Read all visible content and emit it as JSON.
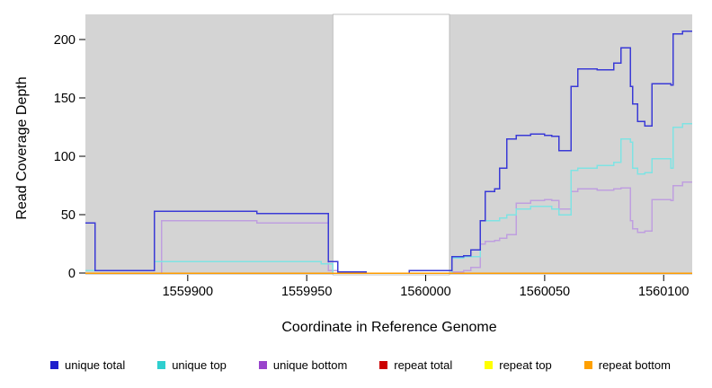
{
  "axes": {
    "x": {
      "label": "Coordinate in Reference Genome",
      "ticks": [
        1559900,
        1559950,
        1560000,
        1560050,
        1560100
      ]
    },
    "y": {
      "label": "Read Coverage Depth",
      "ticks": [
        0,
        50,
        100,
        150,
        200
      ]
    }
  },
  "chart_data": {
    "type": "line",
    "step": true,
    "title": "",
    "xlabel": "Coordinate in Reference Genome",
    "ylabel": "Read Coverage Depth",
    "xlim": [
      1559857,
      1560112
    ],
    "ylim": [
      0,
      221
    ],
    "x_ticks": [
      1559900,
      1559950,
      1560000,
      1560050,
      1560100
    ],
    "y_ticks": [
      0,
      50,
      100,
      150,
      200
    ],
    "grid": false,
    "panel_background": "#d4d4d4",
    "uncovered_region": {
      "x0": 1559961,
      "x1": 1560010,
      "color": "#ffffff"
    },
    "series": [
      {
        "name": "unique total",
        "legend_color": "#1f1fcc",
        "line_color": "#3a3ad6",
        "points": [
          [
            1559857,
            43
          ],
          [
            1559861,
            2
          ],
          [
            1559886,
            53
          ],
          [
            1559929,
            51
          ],
          [
            1559959,
            10
          ],
          [
            1559963,
            1
          ],
          [
            1559975,
            0
          ],
          [
            1559993,
            2
          ],
          [
            1560011,
            14
          ],
          [
            1560016,
            15
          ],
          [
            1560019,
            20
          ],
          [
            1560023,
            45
          ],
          [
            1560025,
            70
          ],
          [
            1560029,
            72
          ],
          [
            1560031,
            90
          ],
          [
            1560034,
            115
          ],
          [
            1560038,
            118
          ],
          [
            1560044,
            119
          ],
          [
            1560050,
            118
          ],
          [
            1560053,
            117
          ],
          [
            1560056,
            105
          ],
          [
            1560061,
            160
          ],
          [
            1560064,
            175
          ],
          [
            1560072,
            174
          ],
          [
            1560079,
            180
          ],
          [
            1560082,
            193
          ],
          [
            1560086,
            160
          ],
          [
            1560087,
            145
          ],
          [
            1560089,
            130
          ],
          [
            1560092,
            126
          ],
          [
            1560095,
            162
          ],
          [
            1560103,
            161
          ],
          [
            1560104,
            205
          ],
          [
            1560108,
            207
          ]
        ]
      },
      {
        "name": "unique top",
        "legend_color": "#2fcfcf",
        "line_color": "#7fe3e3",
        "points": [
          [
            1559857,
            2
          ],
          [
            1559886,
            10
          ],
          [
            1559956,
            8
          ],
          [
            1559961,
            0
          ],
          [
            1560011,
            13
          ],
          [
            1560016,
            14
          ],
          [
            1560023,
            45
          ],
          [
            1560031,
            47
          ],
          [
            1560034,
            50
          ],
          [
            1560038,
            55
          ],
          [
            1560044,
            57
          ],
          [
            1560053,
            55
          ],
          [
            1560056,
            50
          ],
          [
            1560061,
            88
          ],
          [
            1560064,
            90
          ],
          [
            1560072,
            92
          ],
          [
            1560079,
            95
          ],
          [
            1560082,
            115
          ],
          [
            1560086,
            112
          ],
          [
            1560087,
            90
          ],
          [
            1560089,
            85
          ],
          [
            1560092,
            86
          ],
          [
            1560095,
            98
          ],
          [
            1560103,
            90
          ],
          [
            1560104,
            125
          ],
          [
            1560108,
            128
          ]
        ]
      },
      {
        "name": "unique bottom",
        "legend_color": "#9944cc",
        "line_color": "#bf9fdf",
        "points": [
          [
            1559857,
            0
          ],
          [
            1559889,
            45
          ],
          [
            1559929,
            43
          ],
          [
            1559959,
            2
          ],
          [
            1559963,
            0
          ],
          [
            1560011,
            1
          ],
          [
            1560016,
            2
          ],
          [
            1560019,
            5
          ],
          [
            1560023,
            25
          ],
          [
            1560025,
            27
          ],
          [
            1560029,
            28
          ],
          [
            1560031,
            30
          ],
          [
            1560034,
            33
          ],
          [
            1560038,
            60
          ],
          [
            1560044,
            62
          ],
          [
            1560050,
            63
          ],
          [
            1560053,
            62
          ],
          [
            1560056,
            55
          ],
          [
            1560061,
            70
          ],
          [
            1560064,
            72
          ],
          [
            1560072,
            71
          ],
          [
            1560079,
            72
          ],
          [
            1560082,
            73
          ],
          [
            1560086,
            45
          ],
          [
            1560087,
            38
          ],
          [
            1560089,
            35
          ],
          [
            1560092,
            36
          ],
          [
            1560095,
            63
          ],
          [
            1560103,
            62
          ],
          [
            1560104,
            75
          ],
          [
            1560108,
            78
          ]
        ]
      },
      {
        "name": "repeat total",
        "legend_color": "#cc0000",
        "line_color": "#cc0000",
        "points": [
          [
            1559857,
            0
          ]
        ]
      },
      {
        "name": "repeat top",
        "legend_color": "#ffff00",
        "line_color": "#ffff00",
        "points": [
          [
            1559857,
            0
          ]
        ]
      },
      {
        "name": "repeat bottom",
        "legend_color": "#ffa000",
        "line_color": "#ff9d00",
        "points": [
          [
            1559857,
            0
          ]
        ]
      }
    ]
  },
  "legend": {
    "items": [
      {
        "label": "unique total",
        "color": "#1f1fcc"
      },
      {
        "label": "unique top",
        "color": "#2fcfcf"
      },
      {
        "label": "unique bottom",
        "color": "#9944cc"
      },
      {
        "label": "repeat total",
        "color": "#cc0000"
      },
      {
        "label": "repeat top",
        "color": "#ffff00"
      },
      {
        "label": "repeat bottom",
        "color": "#ffa000"
      }
    ]
  }
}
